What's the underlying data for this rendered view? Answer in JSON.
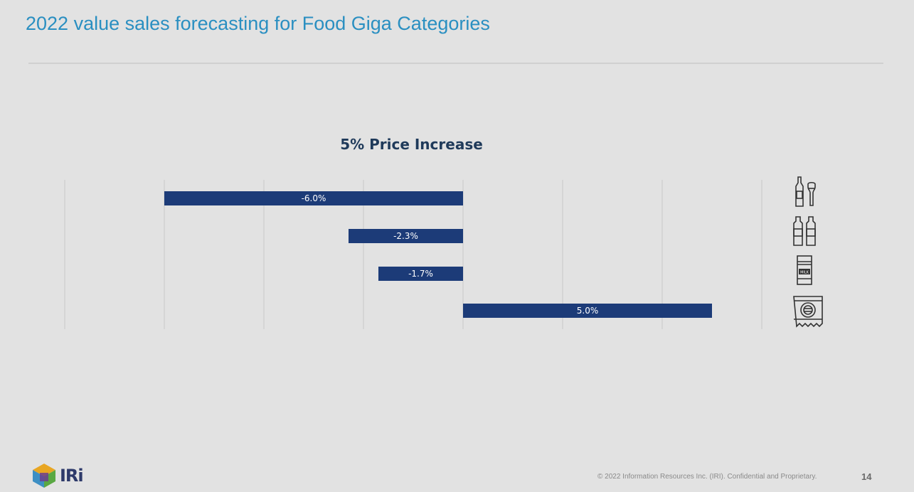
{
  "slide": {
    "title": "2022 value sales forecasting for Food Giga Categories",
    "copyright": "© 2022 Information Resources Inc. (IRI). Confidential and Proprietary.",
    "page_number": "14",
    "logo_text": "IRi"
  },
  "colors": {
    "bar": "#1c3b78",
    "title": "#2a8fc1",
    "grid": "#c8c8c8"
  },
  "chart_data": {
    "type": "bar",
    "orientation": "horizontal",
    "title": "5% Price Increase",
    "categories": [
      "beverages-icon",
      "bottled-drinks-icon",
      "milk-carton-icon",
      "packaged-food-icon"
    ],
    "values": [
      -6.0,
      -2.3,
      -1.7,
      5.0
    ],
    "data_labels": [
      "-6.0%",
      "-2.3%",
      "-1.7%",
      "5.0%"
    ],
    "xlim": [
      -8,
      6
    ],
    "grid": true,
    "gridline_step": 2
  }
}
